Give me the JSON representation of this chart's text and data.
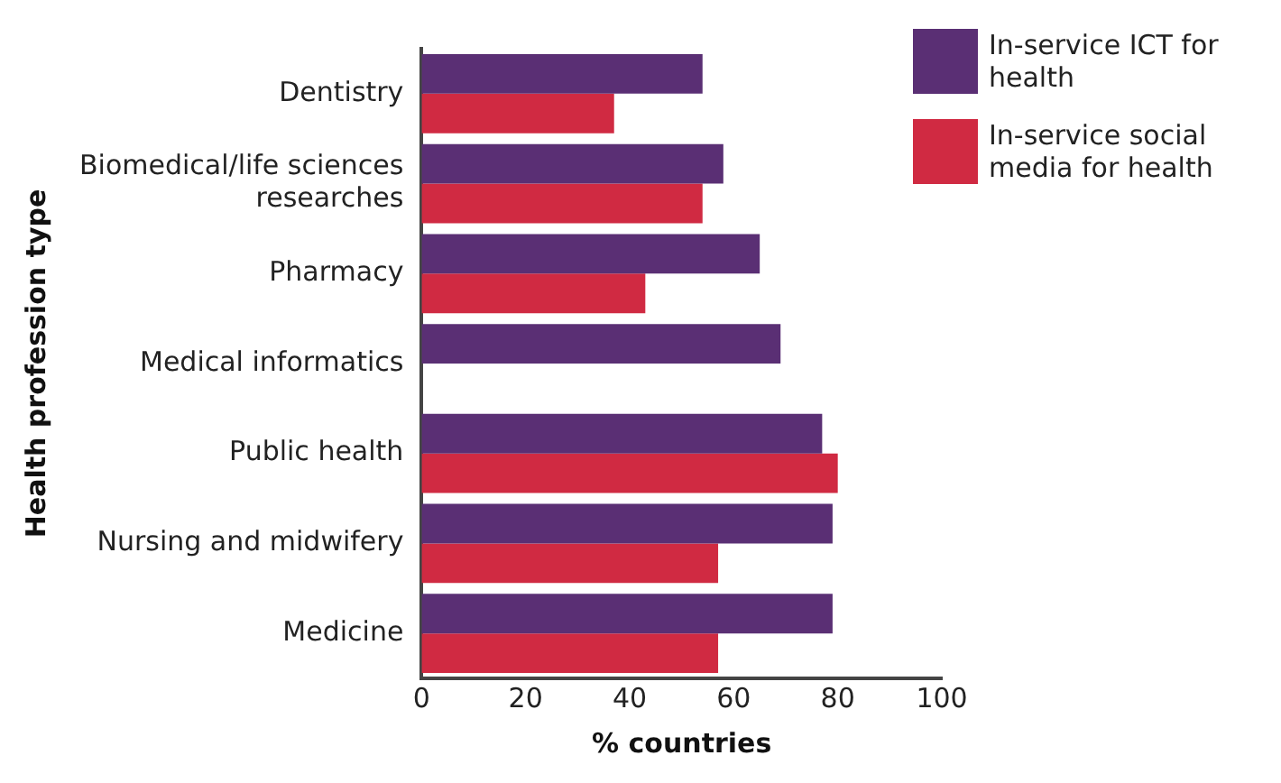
{
  "chart_data": {
    "type": "bar",
    "orientation": "horizontal",
    "xlabel": "% countries",
    "ylabel": "Health profession type",
    "categories": [
      "Dentistry",
      "Biomedical/life sciences researches",
      "Pharmacy",
      "Medical informatics",
      "Public health",
      "Nursing and midwifery",
      "Medicine"
    ],
    "series": [
      {
        "name": "In-service ICT for health",
        "color": "#5a2f74",
        "values": [
          54,
          58,
          65,
          69,
          77,
          79,
          79
        ]
      },
      {
        "name": "In-service social media for health",
        "color": "#d02a42",
        "values": [
          37,
          54,
          43,
          null,
          80,
          57,
          57
        ]
      }
    ],
    "xlim": [
      0,
      100
    ],
    "xticks": [
      0,
      20,
      40,
      60,
      80,
      100
    ],
    "grid": false,
    "legend": "top right"
  }
}
